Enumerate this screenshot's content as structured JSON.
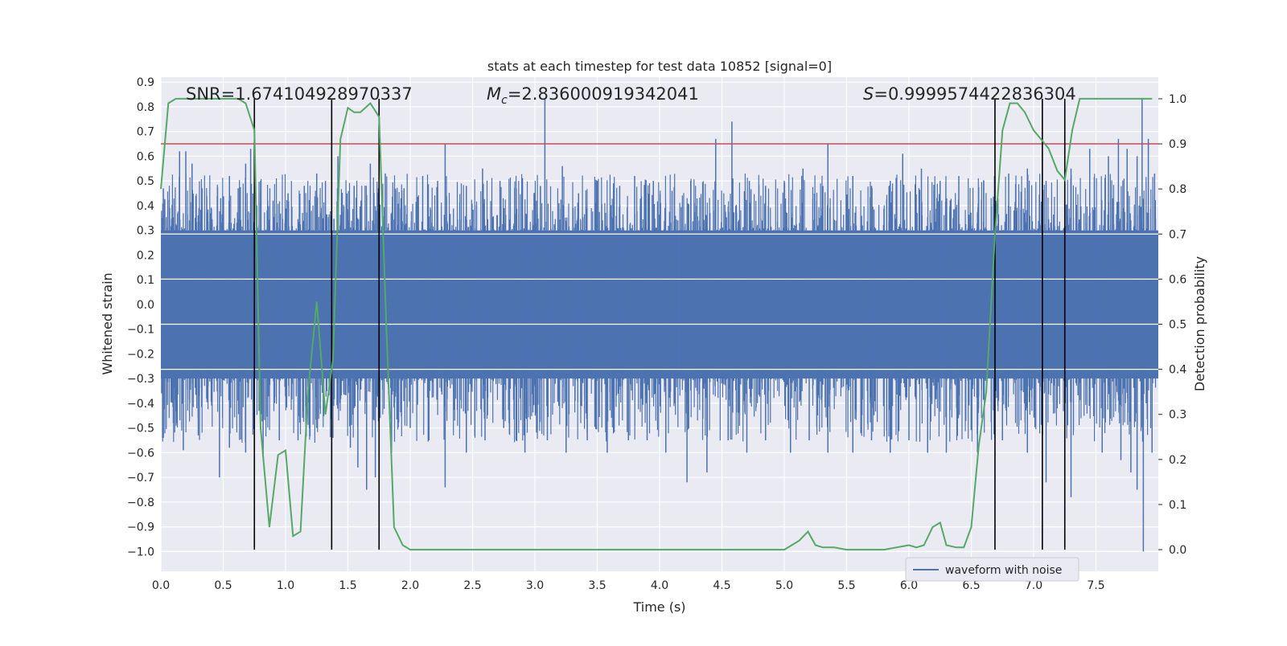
{
  "chart_data": {
    "type": "line",
    "title": "stats at each timestep for test data 10852 [signal=0]",
    "xlabel": "Time (s)",
    "ylabel_left": "Whitened strain",
    "ylabel_right": "Detection probability",
    "xlim": [
      0.0,
      8.0
    ],
    "ylim_left": [
      -1.08,
      0.92
    ],
    "ylim_right": [
      -0.048,
      1.048
    ],
    "x_ticks": [
      "0.0",
      "0.5",
      "1.0",
      "1.5",
      "2.0",
      "2.5",
      "3.0",
      "3.5",
      "4.0",
      "4.5",
      "5.0",
      "5.5",
      "6.0",
      "6.5",
      "7.0",
      "7.5"
    ],
    "y_ticks_left": [
      "0.9",
      "0.8",
      "0.7",
      "0.6",
      "0.5",
      "0.4",
      "0.3",
      "0.2",
      "0.1",
      "0.0",
      "−0.1",
      "−0.2",
      "−0.3",
      "−0.4",
      "−0.5",
      "−0.6",
      "−0.7",
      "−0.8",
      "−0.9",
      "−1.0"
    ],
    "y_ticks_right": [
      "1.0",
      "0.9",
      "0.8",
      "0.7",
      "0.6",
      "0.5",
      "0.4",
      "0.3",
      "0.2",
      "0.1",
      "0.0"
    ],
    "grid": true,
    "legend": {
      "placement": "lower-right",
      "entries": [
        "waveform with noise"
      ]
    },
    "annotations": {
      "snr": "SNR=1.674104928970337",
      "mc_symbol": "M",
      "mc_sub": "c",
      "mc_value": "=2.836000919342041",
      "s_symbol": "S",
      "s_value": "=0.9999574422836304"
    },
    "threshold_line": {
      "value_right_axis": 0.9,
      "color": "#c44e52"
    },
    "vertical_lines_x": [
      0.75,
      1.37,
      1.75,
      6.69,
      7.07,
      7.25
    ],
    "waveform": {
      "name": "waveform with noise",
      "color": "#4c72b0",
      "core_range": [
        -0.3,
        0.3
      ],
      "up_spikes": [
        [
          0.02,
          0.47
        ],
        [
          0.07,
          0.39
        ],
        [
          0.15,
          0.62
        ],
        [
          0.2,
          0.62
        ],
        [
          0.25,
          0.57
        ],
        [
          0.33,
          0.47
        ],
        [
          0.48,
          0.43
        ],
        [
          0.55,
          0.52
        ],
        [
          0.62,
          0.47
        ],
        [
          0.68,
          0.57
        ],
        [
          0.72,
          0.63
        ],
        [
          0.8,
          0.5
        ],
        [
          0.9,
          0.42
        ],
        [
          1.02,
          0.45
        ],
        [
          1.15,
          0.48
        ],
        [
          1.25,
          0.53
        ],
        [
          1.32,
          0.5
        ],
        [
          1.42,
          0.6
        ],
        [
          1.55,
          0.48
        ],
        [
          1.68,
          0.57
        ],
        [
          1.8,
          0.53
        ],
        [
          1.95,
          0.47
        ],
        [
          2.1,
          0.52
        ],
        [
          2.22,
          0.5
        ],
        [
          2.28,
          0.65
        ],
        [
          2.45,
          0.48
        ],
        [
          2.58,
          0.55
        ],
        [
          2.72,
          0.5
        ],
        [
          2.85,
          0.47
        ],
        [
          3.0,
          0.45
        ],
        [
          3.08,
          0.83
        ],
        [
          3.22,
          0.56
        ],
        [
          3.35,
          0.45
        ],
        [
          3.5,
          0.5
        ],
        [
          3.68,
          0.48
        ],
        [
          3.8,
          0.52
        ],
        [
          3.95,
          0.5
        ],
        [
          4.1,
          0.46
        ],
        [
          4.25,
          0.5
        ],
        [
          4.45,
          0.67
        ],
        [
          4.58,
          0.74
        ],
        [
          4.72,
          0.5
        ],
        [
          4.85,
          0.48
        ],
        [
          5.0,
          0.5
        ],
        [
          5.15,
          0.55
        ],
        [
          5.35,
          0.65
        ],
        [
          5.55,
          0.52
        ],
        [
          5.7,
          0.48
        ],
        [
          5.85,
          0.5
        ],
        [
          5.95,
          0.61
        ],
        [
          6.1,
          0.55
        ],
        [
          6.25,
          0.5
        ],
        [
          6.4,
          0.52
        ],
        [
          6.6,
          0.5
        ],
        [
          6.8,
          0.53
        ],
        [
          6.95,
          0.55
        ],
        [
          7.1,
          0.5
        ],
        [
          7.3,
          0.55
        ],
        [
          7.45,
          0.63
        ],
        [
          7.6,
          0.6
        ],
        [
          7.68,
          0.67
        ],
        [
          7.75,
          0.63
        ],
        [
          7.83,
          0.6
        ],
        [
          7.87,
          0.83
        ],
        [
          7.92,
          0.67
        ],
        [
          7.97,
          0.53
        ]
      ],
      "down_spikes": [
        [
          0.02,
          -0.54
        ],
        [
          0.1,
          -0.48
        ],
        [
          0.18,
          -0.59
        ],
        [
          0.3,
          -0.53
        ],
        [
          0.47,
          -0.7
        ],
        [
          0.55,
          -0.58
        ],
        [
          0.68,
          -0.6
        ],
        [
          0.82,
          -0.62
        ],
        [
          0.95,
          -0.55
        ],
        [
          1.1,
          -0.55
        ],
        [
          1.25,
          -0.5
        ],
        [
          1.38,
          -0.54
        ],
        [
          1.52,
          -0.58
        ],
        [
          1.58,
          -0.66
        ],
        [
          1.65,
          -0.75
        ],
        [
          1.72,
          -0.7
        ],
        [
          1.85,
          -0.6
        ],
        [
          2.0,
          -0.5
        ],
        [
          2.15,
          -0.55
        ],
        [
          2.28,
          -0.74
        ],
        [
          2.45,
          -0.6
        ],
        [
          2.6,
          -0.55
        ],
        [
          2.75,
          -0.5
        ],
        [
          2.92,
          -0.6
        ],
        [
          3.1,
          -0.55
        ],
        [
          3.25,
          -0.6
        ],
        [
          3.42,
          -0.55
        ],
        [
          3.58,
          -0.6
        ],
        [
          3.75,
          -0.55
        ],
        [
          3.9,
          -0.55
        ],
        [
          4.05,
          -0.6
        ],
        [
          4.22,
          -0.72
        ],
        [
          4.38,
          -0.68
        ],
        [
          4.55,
          -0.55
        ],
        [
          4.7,
          -0.6
        ],
        [
          4.85,
          -0.55
        ],
        [
          5.05,
          -0.6
        ],
        [
          5.2,
          -0.55
        ],
        [
          5.35,
          -0.6
        ],
        [
          5.55,
          -0.6
        ],
        [
          5.7,
          -0.55
        ],
        [
          5.85,
          -0.6
        ],
        [
          6.0,
          -0.55
        ],
        [
          6.15,
          -0.6
        ],
        [
          6.3,
          -0.6
        ],
        [
          6.55,
          -0.6
        ],
        [
          6.75,
          -0.55
        ],
        [
          6.95,
          -0.6
        ],
        [
          7.1,
          -0.72
        ],
        [
          7.3,
          -0.78
        ],
        [
          7.55,
          -0.6
        ],
        [
          7.7,
          -0.63
        ],
        [
          7.78,
          -0.68
        ],
        [
          7.83,
          -0.75
        ],
        [
          7.88,
          -1.0
        ],
        [
          7.95,
          -0.6
        ]
      ]
    },
    "detection_probability": {
      "color": "#55a868",
      "points": [
        [
          0.0,
          0.8
        ],
        [
          0.06,
          0.99
        ],
        [
          0.12,
          1.0
        ],
        [
          0.3,
          1.0
        ],
        [
          0.5,
          1.0
        ],
        [
          0.62,
          1.0
        ],
        [
          0.68,
          0.99
        ],
        [
          0.75,
          0.93
        ],
        [
          0.8,
          0.27
        ],
        [
          0.87,
          0.05
        ],
        [
          0.94,
          0.21
        ],
        [
          1.0,
          0.22
        ],
        [
          1.06,
          0.03
        ],
        [
          1.12,
          0.04
        ],
        [
          1.18,
          0.35
        ],
        [
          1.25,
          0.55
        ],
        [
          1.32,
          0.3
        ],
        [
          1.38,
          0.42
        ],
        [
          1.44,
          0.91
        ],
        [
          1.5,
          0.98
        ],
        [
          1.55,
          0.97
        ],
        [
          1.6,
          0.97
        ],
        [
          1.68,
          0.99
        ],
        [
          1.75,
          0.96
        ],
        [
          1.81,
          0.48
        ],
        [
          1.87,
          0.05
        ],
        [
          1.94,
          0.01
        ],
        [
          2.0,
          0.0
        ],
        [
          2.5,
          0.0
        ],
        [
          3.0,
          0.0
        ],
        [
          3.5,
          0.0
        ],
        [
          4.0,
          0.0
        ],
        [
          4.5,
          0.0
        ],
        [
          5.0,
          0.0
        ],
        [
          5.06,
          0.01
        ],
        [
          5.12,
          0.02
        ],
        [
          5.19,
          0.04
        ],
        [
          5.25,
          0.01
        ],
        [
          5.31,
          0.005
        ],
        [
          5.4,
          0.005
        ],
        [
          5.5,
          0.0
        ],
        [
          5.8,
          0.0
        ],
        [
          6.0,
          0.01
        ],
        [
          6.06,
          0.005
        ],
        [
          6.12,
          0.01
        ],
        [
          6.19,
          0.05
        ],
        [
          6.25,
          0.06
        ],
        [
          6.3,
          0.01
        ],
        [
          6.38,
          0.005
        ],
        [
          6.44,
          0.005
        ],
        [
          6.5,
          0.05
        ],
        [
          6.56,
          0.23
        ],
        [
          6.62,
          0.35
        ],
        [
          6.69,
          0.7
        ],
        [
          6.75,
          0.93
        ],
        [
          6.81,
          0.99
        ],
        [
          6.87,
          0.99
        ],
        [
          6.93,
          0.97
        ],
        [
          7.0,
          0.93
        ],
        [
          7.06,
          0.91
        ],
        [
          7.12,
          0.89
        ],
        [
          7.19,
          0.84
        ],
        [
          7.25,
          0.82
        ],
        [
          7.31,
          0.93
        ],
        [
          7.37,
          1.0
        ],
        [
          7.5,
          1.0
        ],
        [
          7.7,
          1.0
        ],
        [
          7.95,
          1.0
        ]
      ]
    }
  }
}
